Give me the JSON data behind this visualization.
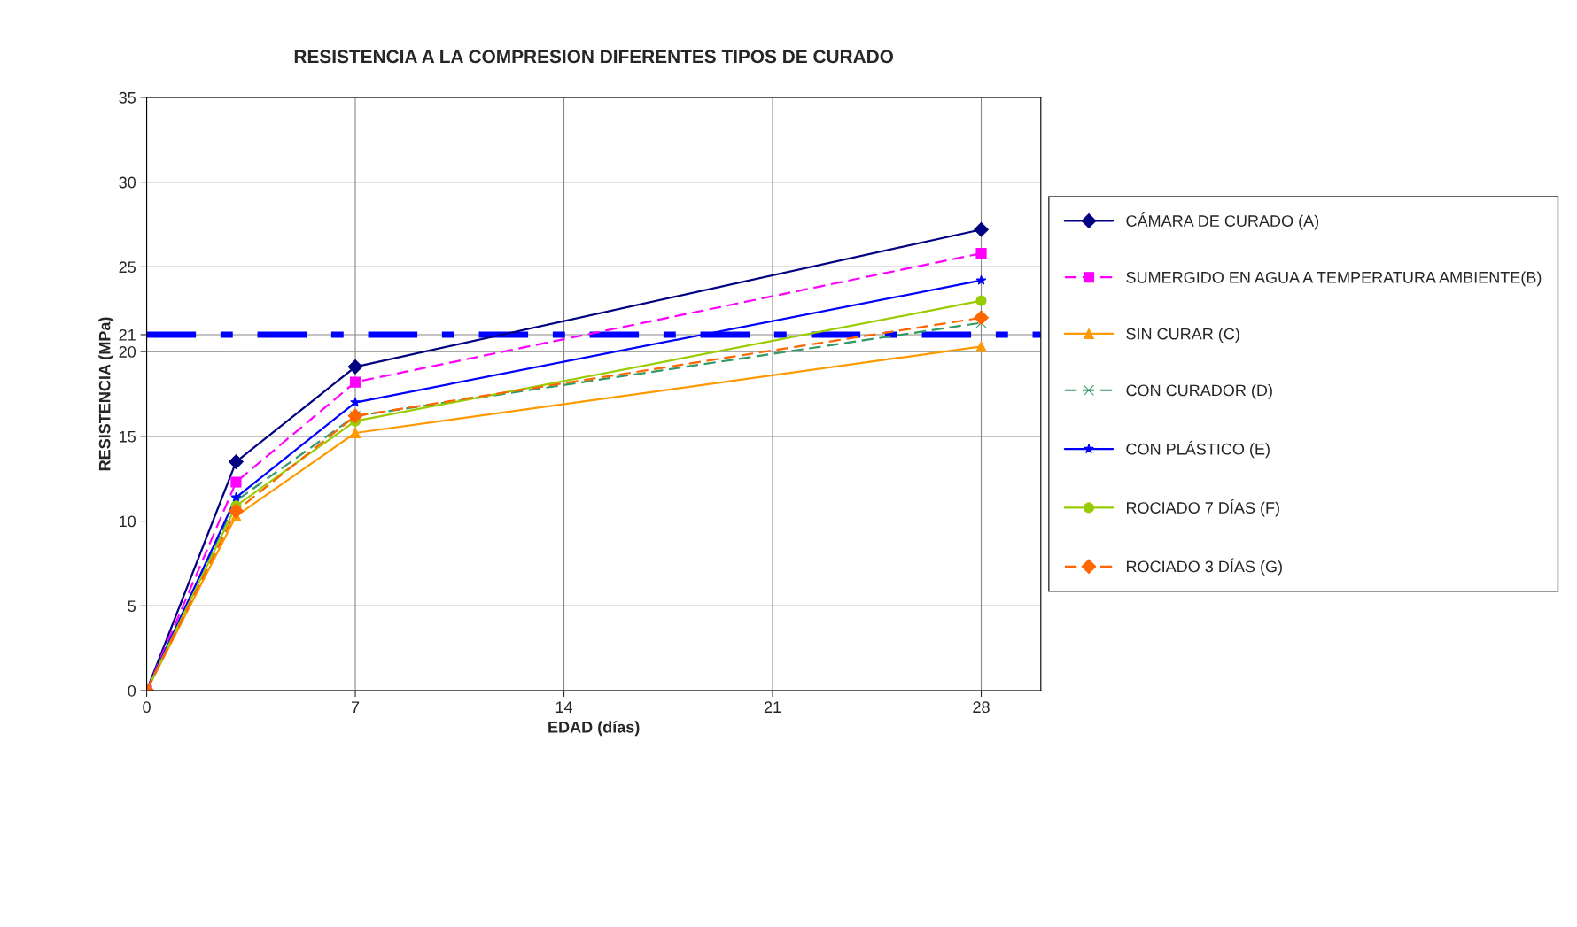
{
  "chart_data": {
    "type": "line",
    "title": "RESISTENCIA A LA COMPRESION DIFERENTES TIPOS DE CURADO",
    "xlabel": "EDAD (días)",
    "ylabel": "RESISTENCIA (MPa)",
    "x": [
      0,
      3,
      7,
      28
    ],
    "series": [
      {
        "name": "CÁMARA DE CURADO (A)",
        "color": "#000080",
        "marker": "diamond",
        "line_style": "solid",
        "values": [
          0,
          13.5,
          19.1,
          27.2
        ]
      },
      {
        "name": "SUMERGIDO EN AGUA A TEMPERATURA AMBIENTE(B)",
        "color": "#ff00ff",
        "marker": "square",
        "line_style": "dashed",
        "values": [
          0,
          12.3,
          18.2,
          25.8
        ]
      },
      {
        "name": "SIN CURAR (C)",
        "color": "#ff9900",
        "marker": "triangle",
        "line_style": "solid",
        "values": [
          0,
          10.3,
          15.2,
          20.3
        ]
      },
      {
        "name": "CON CURADOR (D)",
        "color": "#339966",
        "marker": "cross",
        "line_style": "dashed",
        "values": [
          0,
          11.2,
          16.2,
          21.7
        ]
      },
      {
        "name": "CON PLÁSTICO (E)",
        "color": "#0000ff",
        "marker": "star",
        "line_style": "solid",
        "values": [
          0,
          11.4,
          17.0,
          24.2
        ]
      },
      {
        "name": "ROCIADO 7 DÍAS (F)",
        "color": "#99cc00",
        "marker": "circle",
        "line_style": "solid",
        "values": [
          0,
          10.9,
          15.9,
          23.0
        ]
      },
      {
        "name": "ROCIADO 3 DÍAS (G)",
        "color": "#ff6600",
        "marker": "diamond",
        "line_style": "dashed",
        "values": [
          0,
          10.6,
          16.2,
          22.0
        ]
      }
    ],
    "xlim": [
      0,
      30
    ],
    "xticks": [
      0,
      7,
      14,
      21,
      28
    ],
    "ylim": [
      0,
      35
    ],
    "yticks": [
      0,
      5,
      10,
      15,
      20,
      21,
      25,
      30,
      35
    ],
    "ref_lines": [
      {
        "axis": "y",
        "value": 21,
        "color": "#0000ff",
        "line_style": "dashdot"
      }
    ],
    "grid": true,
    "legend": "right"
  }
}
